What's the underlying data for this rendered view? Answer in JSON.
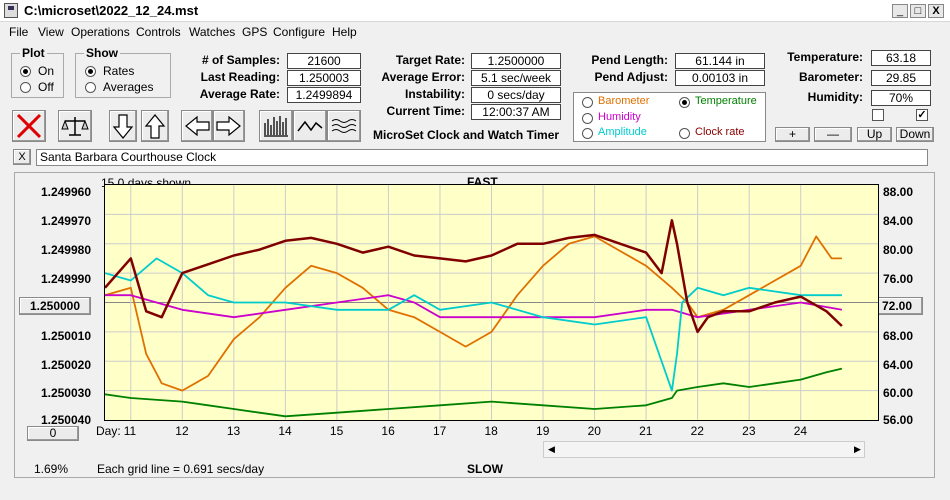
{
  "window": {
    "title": "C:\\microset\\2022_12_24.mst",
    "min": "_",
    "max": "□",
    "close": "X"
  },
  "menu": [
    "File",
    "View",
    "Operations",
    "Controls",
    "Watches",
    "GPS",
    "Configure",
    "Help"
  ],
  "plot_group": {
    "label": "Plot",
    "on": "On",
    "off": "Off"
  },
  "show_group": {
    "label": "Show",
    "rates": "Rates",
    "averages": "Averages"
  },
  "stats1": {
    "samples_label": "# of Samples:",
    "samples": "21600",
    "last_label": "Last Reading:",
    "last": "1.250003",
    "avg_label": "Average Rate:",
    "avg": "1.2499894"
  },
  "stats2": {
    "target_label": "Target Rate:",
    "target": "1.2500000",
    "avgerr_label": "Average Error:",
    "avgerr": "5.1 sec/week",
    "instab_label": "Instability:",
    "instab": "0 secs/day",
    "time_label": "Current Time:",
    "time": "12:00:37 AM"
  },
  "app_label": "MicroSet Clock and Watch Timer",
  "pend": {
    "length_label": "Pend Length:",
    "length": "61.144 in",
    "adjust_label": "Pend Adjust:",
    "adjust": "0.00103 in"
  },
  "env": {
    "temp_label": "Temperature:",
    "temp": "63.18",
    "baro_label": "Barometer:",
    "baro": "29.85",
    "hum_label": "Humidity:",
    "hum": "70%"
  },
  "overlay": {
    "barometer": "Barometer",
    "temperature": "Temperature",
    "humidity": "Humidity",
    "amplitude": "Amplitude",
    "clockrate": "Clock rate",
    "barometer_color": "#e07000",
    "temperature_color": "#008000",
    "humidity_color": "#cc00cc",
    "amplitude_color": "#00cccc",
    "clockrate_color": "#880000"
  },
  "adj_buttons": {
    "plus": "+",
    "minus": "—",
    "up": "Up",
    "down": "Down"
  },
  "clock_name": "Santa Barbara Courthouse Clock",
  "clear": "X",
  "chart_labels": {
    "days_shown": "15.0 days shown",
    "fast": "FAST",
    "slow": "SLOW",
    "grid": "Each grid line = 0.691 secs/day",
    "day": "Day:",
    "percent": "1.69%",
    "center_btn": "1.250000",
    "zero_btn": "0",
    "right_btn": "72.00"
  },
  "chart_data": {
    "type": "line",
    "x_label": "Day:",
    "xlim": [
      10.5,
      25.5
    ],
    "x_ticks": [
      "11",
      "12",
      "13",
      "14",
      "15",
      "16",
      "17",
      "18",
      "19",
      "20",
      "21",
      "22",
      "23",
      "24"
    ],
    "left_axis": {
      "ticks": [
        "1.249960",
        "1.249970",
        "1.249980",
        "1.249990",
        "1.250000",
        "1.250010",
        "1.250020",
        "1.250030",
        "1.250040"
      ],
      "ylim": [
        1.24996,
        1.25004
      ],
      "inverted": true
    },
    "right_axis": {
      "ticks": [
        "88.00",
        "84.00",
        "80.00",
        "76.00",
        "72.00",
        "68.00",
        "64.00",
        "60.00",
        "56.00"
      ],
      "ylim": [
        56,
        88
      ]
    },
    "series": [
      {
        "name": "Clock rate",
        "color": "#800000",
        "axis": "left",
        "x": [
          10.5,
          11,
          11.3,
          11.6,
          12,
          12.5,
          13,
          13.5,
          14,
          14.5,
          15,
          15.5,
          16,
          16.5,
          17,
          17.5,
          18,
          18.5,
          19,
          19.5,
          20,
          20.5,
          21,
          21.3,
          21.5,
          21.6,
          21.8,
          22,
          22.2,
          22.5,
          23,
          23.5,
          24,
          24.5,
          24.8
        ],
        "y": [
          1.249995,
          1.249985,
          1.250003,
          1.250005,
          1.24999,
          1.249987,
          1.249984,
          1.249982,
          1.249979,
          1.249978,
          1.24998,
          1.249983,
          1.249981,
          1.249984,
          1.249985,
          1.249986,
          1.249984,
          1.24998,
          1.24998,
          1.249978,
          1.249977,
          1.24998,
          1.249983,
          1.24999,
          1.249972,
          1.24998,
          1.25,
          1.25001,
          1.250005,
          1.250003,
          1.250003,
          1.25,
          1.249998,
          1.250003,
          1.250008
        ]
      },
      {
        "name": "Barometer",
        "color": "#e07000",
        "axis": "right",
        "x": [
          10.5,
          11,
          11.3,
          11.6,
          12,
          12.5,
          13,
          13.5,
          14,
          14.5,
          15,
          15.5,
          16,
          16.5,
          17,
          17.5,
          18,
          18.5,
          19,
          19.5,
          20,
          20.5,
          21,
          21.5,
          21.8,
          22,
          22.5,
          23,
          23.5,
          24,
          24.3,
          24.6,
          24.8
        ],
        "y": [
          73,
          74,
          65,
          61,
          60,
          62,
          67,
          70,
          74,
          77,
          76,
          74,
          71,
          70,
          68,
          66,
          68,
          73,
          77,
          80,
          81,
          79,
          77,
          74,
          72,
          70,
          71,
          73,
          75,
          77,
          81,
          78,
          78
        ]
      },
      {
        "name": "Humidity",
        "color": "#cc00cc",
        "axis": "right",
        "x": [
          10.5,
          11,
          12,
          13,
          14,
          15,
          16,
          16.5,
          17,
          18,
          19,
          20,
          21,
          21.5,
          22,
          23,
          24,
          24.8
        ],
        "y": [
          73,
          73,
          71,
          70,
          71,
          72,
          73,
          72,
          70,
          70,
          70,
          70,
          71,
          71,
          70,
          71,
          72,
          71
        ]
      },
      {
        "name": "Amplitude",
        "color": "#00cccc",
        "axis": "right",
        "x": [
          10.5,
          11,
          11.5,
          12,
          12.5,
          13,
          14,
          15,
          16,
          16.5,
          17,
          18,
          19,
          20,
          21,
          21.5,
          21.6,
          21.7,
          22,
          22.5,
          23,
          24,
          24.8
        ],
        "y": [
          76,
          75,
          78,
          76,
          73,
          72,
          72,
          71,
          71,
          73,
          71,
          72,
          70,
          69,
          70,
          60,
          65,
          72,
          74,
          73,
          74,
          73,
          73
        ]
      },
      {
        "name": "Temperature",
        "color": "#008000",
        "axis": "right",
        "x": [
          10.5,
          11,
          12,
          12.5,
          13,
          13.5,
          14,
          15,
          16,
          17,
          18,
          19,
          20,
          21,
          21.5,
          21.6,
          22,
          22.5,
          23,
          23.5,
          24,
          24.5,
          24.8
        ],
        "y": [
          59.5,
          59,
          58.5,
          58,
          57.5,
          57,
          56.5,
          57,
          57.5,
          58,
          58.5,
          58,
          57.5,
          58,
          59,
          60,
          60.5,
          61,
          60.5,
          61,
          61.5,
          62.5,
          63
        ]
      }
    ]
  }
}
